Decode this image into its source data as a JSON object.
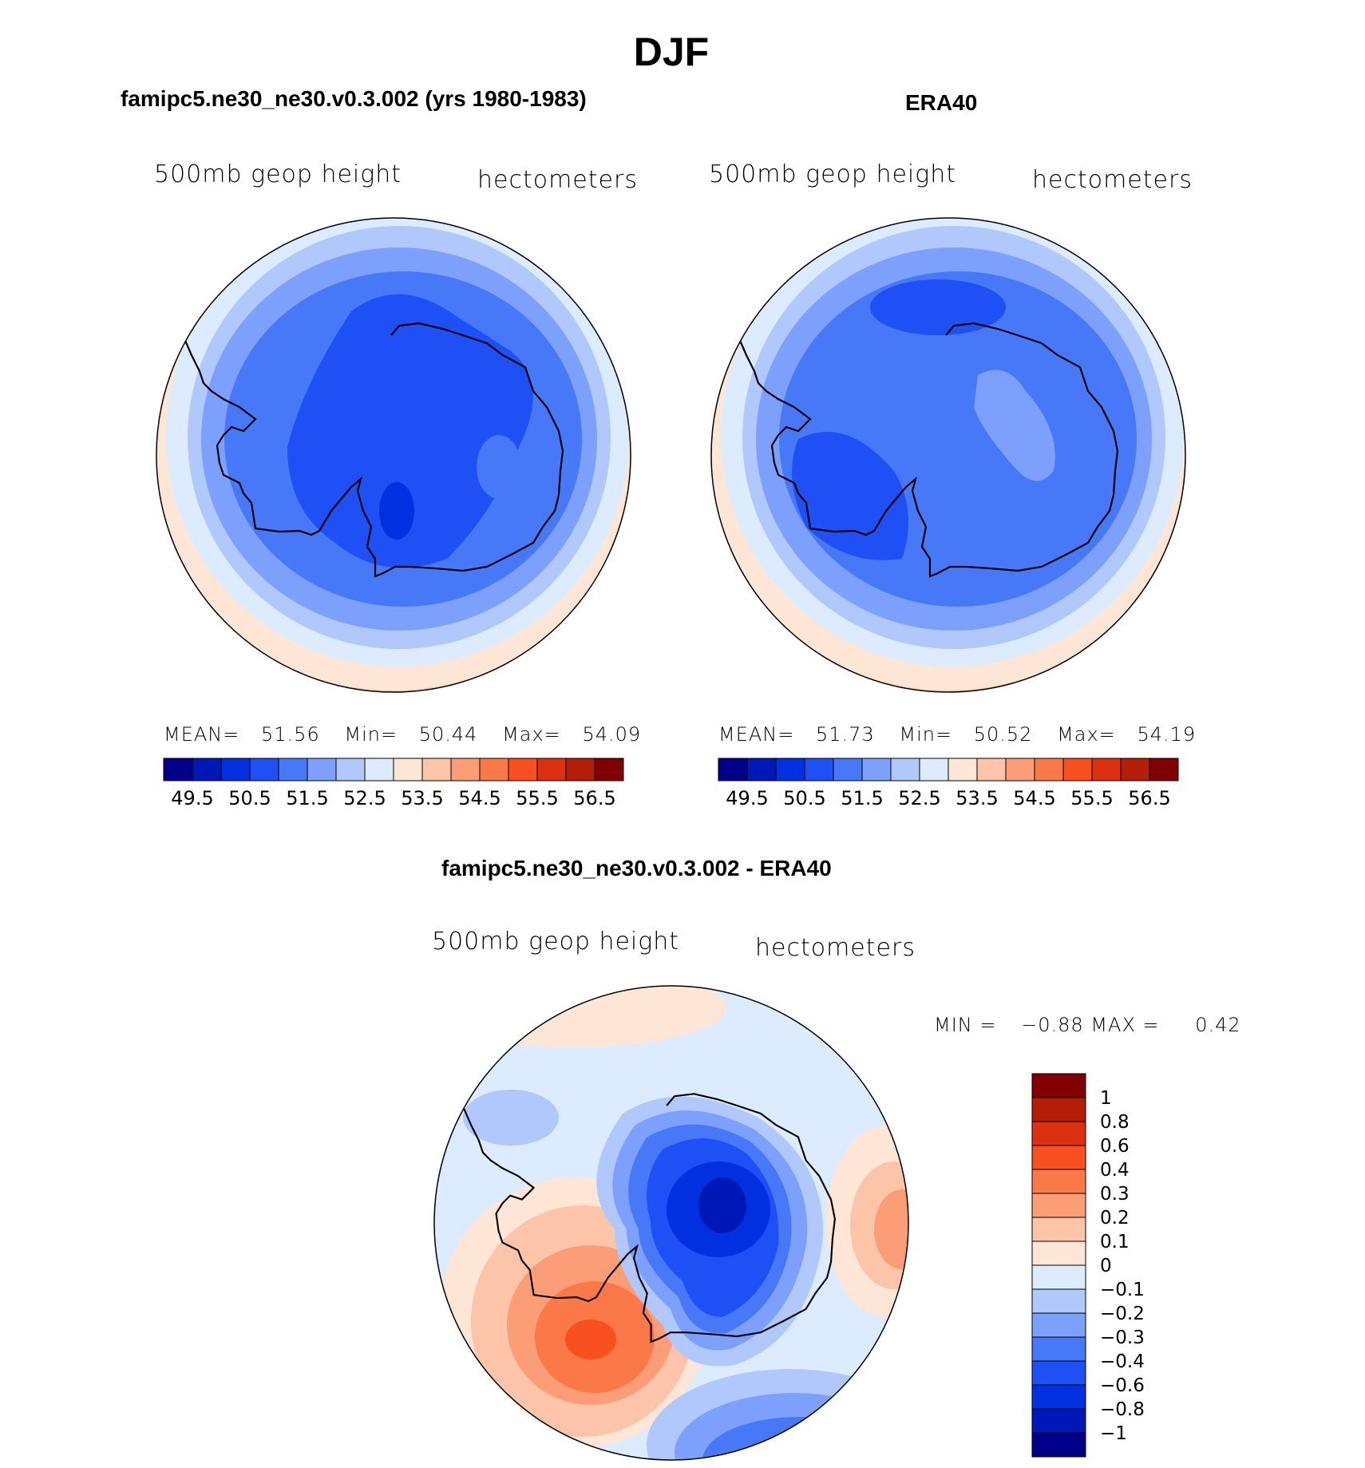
{
  "page": {
    "title": "DJF",
    "field_label": "500mb  geop  height",
    "units_label": "hectometers"
  },
  "palette": [
    "#00008a",
    "#0018b8",
    "#0030e0",
    "#1e50f5",
    "#4678f8",
    "#7ca0fb",
    "#b0c8fc",
    "#dcebfd",
    "#fde6d6",
    "#fcc4a8",
    "#fb9e78",
    "#fb7848",
    "#f85020",
    "#dc3010",
    "#b41e08",
    "#800000"
  ],
  "chart_data": [
    {
      "type": "heatmap",
      "projection": "south polar stereographic",
      "title": "famipc5.ne30_ne30.v0.3.002 (yrs 1980-1983)",
      "field": "500mb  geop  height",
      "units": "hectometers",
      "stats": {
        "mean_label": "MEAN=",
        "mean": "51.56",
        "min_label": "Min=",
        "min": "50.44",
        "max_label": "Max=",
        "max": "54.09"
      },
      "colorbar_ticks": [
        "49.5",
        "50.5",
        "51.5",
        "52.5",
        "53.5",
        "54.5",
        "55.5",
        "56.5"
      ],
      "levels": [
        49.5,
        50,
        50.5,
        51,
        51.5,
        52,
        52.5,
        53,
        53.5,
        54,
        54.5,
        55,
        55.5,
        56,
        56.5
      ]
    },
    {
      "type": "heatmap",
      "projection": "south polar stereographic",
      "title": "ERA40",
      "field": "500mb  geop  height",
      "units": "hectometers",
      "stats": {
        "mean_label": "MEAN=",
        "mean": "51.73",
        "min_label": "Min=",
        "min": "50.52",
        "max_label": "Max=",
        "max": "54.19"
      },
      "colorbar_ticks": [
        "49.5",
        "50.5",
        "51.5",
        "52.5",
        "53.5",
        "54.5",
        "55.5",
        "56.5"
      ],
      "levels": [
        49.5,
        50,
        50.5,
        51,
        51.5,
        52,
        52.5,
        53,
        53.5,
        54,
        54.5,
        55,
        55.5,
        56,
        56.5
      ]
    },
    {
      "type": "heatmap",
      "projection": "south polar stereographic",
      "title": "famipc5.ne30_ne30.v0.3.002 - ERA40",
      "field": "500mb  geop  height",
      "units": "hectometers",
      "stats": {
        "min_label": "MIN =",
        "min": "−0.88",
        "max_label": "MAX =",
        "max": "0.42"
      },
      "colorbar_ticks": [
        "1",
        "0.8",
        "0.6",
        "0.4",
        "0.3",
        "0.2",
        "0.1",
        "0",
        "−0.1",
        "−0.2",
        "−0.3",
        "−0.4",
        "−0.6",
        "−0.8",
        "−1"
      ],
      "levels": [
        1,
        0.8,
        0.6,
        0.4,
        0.3,
        0.2,
        0.1,
        0,
        -0.1,
        -0.2,
        -0.3,
        -0.4,
        -0.6,
        -0.8,
        -1
      ]
    }
  ]
}
